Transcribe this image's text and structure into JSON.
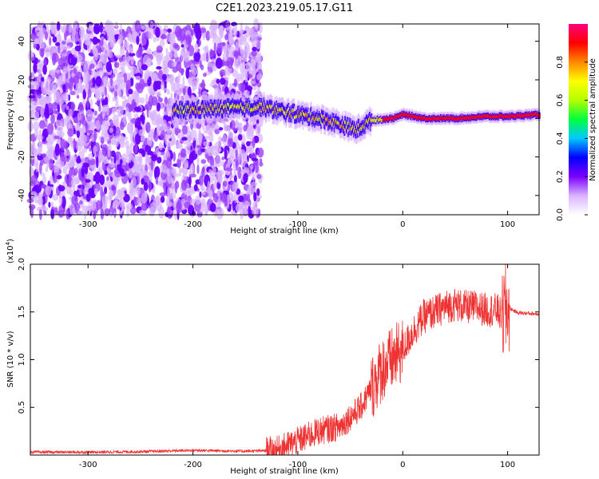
{
  "figure_title": "C2E1.2023.219.05.17.G11",
  "chart_data": [
    {
      "type": "heatmap",
      "xlabel": "Height of straight line (km)",
      "ylabel": "Frequency (Hz)",
      "xlim": [
        -355,
        130
      ],
      "ylim": [
        -50,
        49
      ],
      "x_ticks": [
        -300,
        -200,
        -100,
        0,
        100
      ],
      "y_ticks": [
        -40,
        -20,
        0,
        20,
        40
      ],
      "grid": false,
      "colorbar": {
        "label": "Normalized spectral amplitude",
        "range": [
          0,
          1
        ],
        "ticks": [
          0.0,
          0.2,
          0.4,
          0.6,
          0.8
        ],
        "colormap": [
          "#ffffff",
          "#d9b3ff",
          "#7b00ff",
          "#0000ff",
          "#00c8ff",
          "#00ff40",
          "#b4ff00",
          "#ffff00",
          "#ff8800",
          "#ff0000",
          "#ff0080"
        ]
      },
      "features": {
        "noise_band_x": [
          -355,
          -135
        ],
        "signal_line": {
          "x": [
            -220,
            -180,
            -135,
            -120,
            -100,
            -80,
            -60,
            -45,
            -30,
            -10,
            0,
            20,
            50,
            80,
            100,
            130
          ],
          "frequency": [
            4,
            5,
            6,
            4,
            2,
            0,
            -3,
            -6,
            -1,
            0,
            2,
            0,
            0,
            1,
            1,
            2
          ]
        }
      }
    },
    {
      "type": "line",
      "xlabel": "Height of straight line (km)",
      "ylabel": "SNR (10 * v/v)",
      "y_multiplier": "(x10",
      "y_multiplier_exp": "4",
      "y_multiplier_close": ")",
      "xlim": [
        -355,
        130
      ],
      "ylim": [
        0,
        20000
      ],
      "x_ticks": [
        -300,
        -200,
        -100,
        0,
        100
      ],
      "y_ticks": [
        0.5,
        1.0,
        1.5,
        2.0
      ],
      "color": "#ee3333",
      "grid": false,
      "series": [
        {
          "x": [
            -355,
            -300,
            -250,
            -200,
            -150,
            -120,
            -100,
            -80,
            -60,
            -40,
            -30,
            -20,
            -10,
            0,
            10,
            20,
            30,
            40,
            50,
            60,
            70,
            80,
            90,
            95,
            100,
            110,
            130
          ],
          "values": [
            300,
            300,
            350,
            500,
            400,
            500,
            1500,
            2500,
            3000,
            5000,
            7000,
            9000,
            10000,
            11000,
            13000,
            14500,
            15000,
            15500,
            15800,
            15500,
            15500,
            15200,
            15200,
            14500,
            15500,
            14900,
            14800
          ]
        }
      ]
    }
  ]
}
